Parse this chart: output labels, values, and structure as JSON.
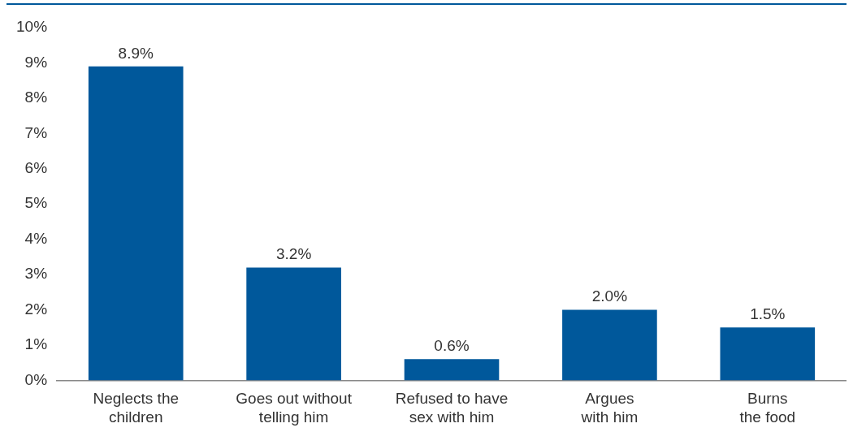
{
  "chart_data": {
    "type": "bar",
    "categories": [
      "Neglects the children",
      "Goes out without telling him",
      "Refused to have sex with him",
      "Argues with him",
      "Burns the food"
    ],
    "values": [
      8.9,
      3.2,
      0.6,
      2.0,
      1.5
    ],
    "color": "#00589b",
    "value_labels": [
      "8.9%",
      "3.2%",
      "0.6%",
      "2.0%",
      "1.5%"
    ],
    "ylim": [
      0,
      10
    ],
    "yticks": [
      {
        "value": 0,
        "label": "0%"
      },
      {
        "value": 1,
        "label": "1%"
      },
      {
        "value": 2,
        "label": "2%"
      },
      {
        "value": 3,
        "label": "3%"
      },
      {
        "value": 4,
        "label": "4%"
      },
      {
        "value": 5,
        "label": "5%"
      },
      {
        "value": 6,
        "label": "6%"
      },
      {
        "value": 7,
        "label": "7%"
      },
      {
        "value": 8,
        "label": "8%"
      },
      {
        "value": 9,
        "label": "9%"
      },
      {
        "value": 10,
        "label": "10%"
      }
    ],
    "grid": false,
    "legend": false
  }
}
